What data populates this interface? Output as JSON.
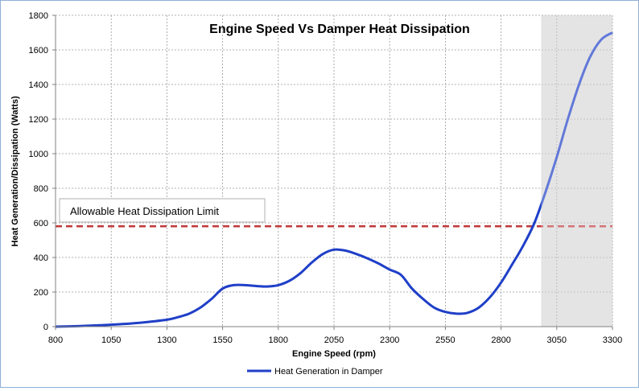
{
  "chart_data": {
    "type": "line",
    "title": "Engine Speed Vs Damper Heat Dissipation",
    "xlabel": "Engine Speed (rpm)",
    "ylabel": "Heat Generation/Dissipation  (Watts)",
    "xlim": [
      800,
      3300
    ],
    "ylim": [
      0,
      1800
    ],
    "x_ticks": [
      800,
      1050,
      1300,
      1550,
      1800,
      2050,
      2300,
      2550,
      2800,
      3050,
      3300
    ],
    "y_ticks": [
      0,
      200,
      400,
      600,
      800,
      1000,
      1200,
      1400,
      1600,
      1800
    ],
    "grid": true,
    "legend_position": "bottom",
    "series": [
      {
        "name": "Heat Generation in Damper",
        "color": "#1f3fc8",
        "x": [
          800,
          900,
          1000,
          1100,
          1200,
          1300,
          1350,
          1400,
          1450,
          1500,
          1550,
          1600,
          1650,
          1700,
          1750,
          1800,
          1850,
          1900,
          1950,
          2000,
          2050,
          2100,
          2150,
          2200,
          2250,
          2300,
          2350,
          2400,
          2450,
          2500,
          2550,
          2600,
          2650,
          2700,
          2750,
          2800,
          2850,
          2900,
          2950,
          3000,
          3050,
          3100,
          3150,
          3200,
          3250,
          3300
        ],
        "y": [
          0,
          3,
          8,
          15,
          25,
          40,
          55,
          75,
          110,
          160,
          220,
          240,
          240,
          235,
          232,
          240,
          265,
          310,
          370,
          420,
          445,
          440,
          420,
          395,
          365,
          330,
          300,
          220,
          160,
          110,
          85,
          75,
          80,
          110,
          170,
          255,
          360,
          470,
          600,
          780,
          980,
          1200,
          1400,
          1560,
          1660,
          1700
        ]
      }
    ],
    "reference_line": {
      "label": "Allowable Heat Dissipation Limit",
      "y": 580,
      "color": "#c0393b"
    },
    "shaded_region": {
      "x_start": 2980,
      "x_end": 3300,
      "color": "#d9d9d9"
    }
  }
}
